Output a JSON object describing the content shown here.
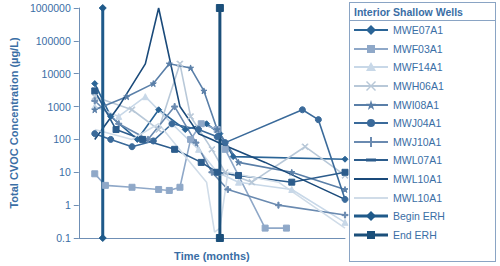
{
  "chart_data": {
    "type": "line",
    "x_label": "Time (months)",
    "y_label": "Total CVOC Concentration (µg/L)",
    "legend_title": "Interior Shallow Wells",
    "legend": "right",
    "log": "y",
    "grid": false,
    "tick_labels": "y",
    "xlim": [
      0,
      100
    ],
    "ylim": [
      0.1,
      1000000
    ],
    "yticks": [
      0.1,
      1,
      10,
      100,
      1000,
      10000,
      100000,
      1000000
    ],
    "series": [
      {
        "name": "MWE07A1",
        "color": "#2a6496",
        "marker": "diamond",
        "x": [
          6,
          12,
          22,
          30,
          40,
          48,
          53,
          58,
          100
        ],
        "values": [
          5000,
          500,
          100,
          800,
          200,
          300,
          150,
          30,
          25
        ]
      },
      {
        "name": "MWF03A1",
        "color": "#8fa8c8",
        "marker": "square",
        "x": [
          6,
          10,
          20,
          30,
          34,
          38,
          42,
          46,
          52,
          55,
          70,
          78
        ],
        "values": [
          9,
          4,
          3.5,
          3,
          2.8,
          3.5,
          100,
          300,
          200,
          50,
          0.2,
          0.2
        ]
      },
      {
        "name": "MWF14A1",
        "color": "#c8d8e8",
        "marker": "triangle",
        "x": [
          6,
          15,
          25,
          35,
          45,
          52,
          60,
          80,
          100
        ],
        "values": [
          1000,
          500,
          2000,
          300,
          50,
          10,
          5,
          3,
          0.3
        ]
      },
      {
        "name": "MWH06A1",
        "color": "#b8c8d8",
        "marker": "x",
        "x": [
          6,
          20,
          30,
          38,
          42,
          50,
          55,
          65,
          85,
          100
        ],
        "values": [
          2000,
          800,
          200,
          20000,
          500,
          50,
          10,
          5,
          60,
          8
        ]
      },
      {
        "name": "MWI08A1",
        "color": "#5a7fa8",
        "marker": "star",
        "x": [
          6,
          18,
          28,
          34,
          42,
          47,
          52,
          60,
          80,
          100
        ],
        "values": [
          800,
          2000,
          5000,
          20000,
          15000,
          3000,
          200,
          20,
          10,
          3
        ]
      },
      {
        "name": "MWJ04A1",
        "color": "#3a6a9a",
        "marker": "circle",
        "x": [
          6,
          12,
          20,
          28,
          35,
          45,
          52,
          55,
          84,
          90,
          100
        ],
        "values": [
          150,
          100,
          60,
          90,
          300,
          200,
          120,
          80,
          800,
          400,
          1.5
        ]
      },
      {
        "name": "MWJ10A1",
        "color": "#6a8ab0",
        "marker": "plus",
        "x": [
          6,
          15,
          26,
          36,
          44,
          50,
          56,
          75,
          100
        ],
        "values": [
          1500,
          300,
          100,
          1000,
          80,
          10,
          3,
          1,
          0.5
        ]
      },
      {
        "name": "MWL07A1",
        "color": "#2c5c8c",
        "marker": "dash",
        "x": [
          6,
          14,
          24,
          36,
          46,
          52,
          60,
          80,
          100
        ],
        "values": [
          3000,
          200,
          100,
          50,
          20,
          10,
          8,
          5,
          10
        ]
      },
      {
        "name": "MWL10A1",
        "color": "#1a4a7a",
        "marker": "none",
        "x": [
          6,
          15,
          25,
          30,
          38,
          45,
          50,
          54,
          70,
          100
        ],
        "values": [
          100,
          1000,
          20000,
          1000000,
          1000,
          150,
          100,
          70,
          20,
          1.5
        ]
      },
      {
        "name": "MWL10A1",
        "color": "#d0dce8",
        "marker": "none",
        "x": [
          6,
          20,
          30,
          40,
          48,
          51,
          53,
          56,
          75,
          100
        ],
        "values": [
          200,
          100,
          300,
          30,
          5,
          0.15,
          0.2,
          10,
          5,
          0.2
        ]
      },
      {
        "name": "Begin ERH",
        "color": "#1f5a8a",
        "marker": "diamond",
        "line_style": "bold",
        "x": [
          9,
          9
        ],
        "values": [
          0.1,
          1000000
        ]
      },
      {
        "name": "End ERH",
        "color": "#1b4f7a",
        "marker": "square",
        "line_style": "bold",
        "x": [
          53,
          53
        ],
        "values": [
          0.1,
          1000000
        ]
      }
    ]
  }
}
